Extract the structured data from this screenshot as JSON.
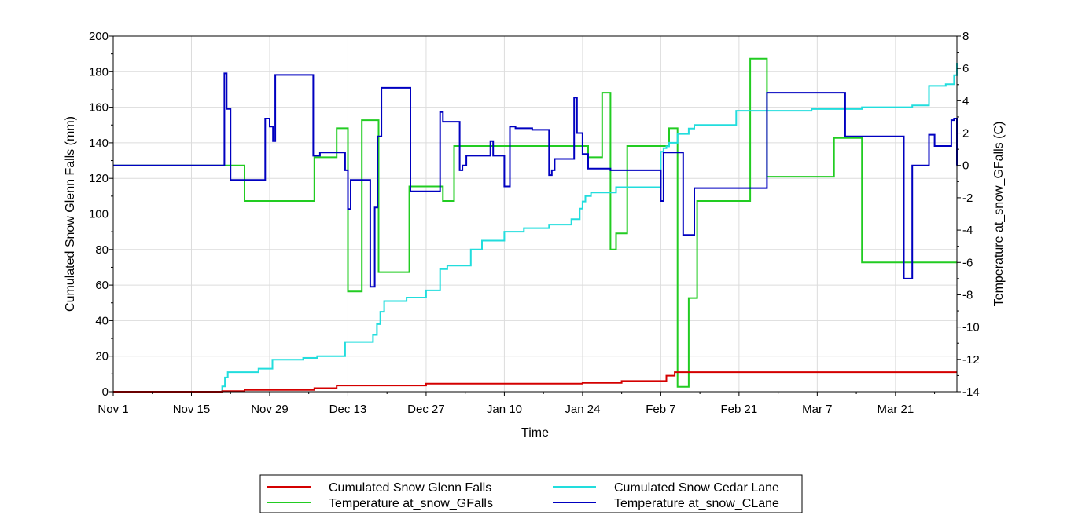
{
  "chart_data": {
    "type": "line",
    "xlabel": "Time",
    "ylabel": "Cumulated Snow Glenn Falls (mm)",
    "y2label": "Temperature at_snow_GFalls (C)",
    "x_ticks": [
      {
        "label": "Nov 1",
        "day": 0
      },
      {
        "label": "Nov 15",
        "day": 14
      },
      {
        "label": "Nov 29",
        "day": 28
      },
      {
        "label": "Dec 13",
        "day": 42
      },
      {
        "label": "Dec 27",
        "day": 56
      },
      {
        "label": "Jan 10",
        "day": 70
      },
      {
        "label": "Jan 24",
        "day": 84
      },
      {
        "label": "Feb 7",
        "day": 98
      },
      {
        "label": "Feb 21",
        "day": 112
      },
      {
        "label": "Mar 7",
        "day": 126
      },
      {
        "label": "Mar 21",
        "day": 140
      }
    ],
    "xlim_days": [
      0,
      151
    ],
    "ylim": [
      0,
      200
    ],
    "y2lim": [
      -14,
      8
    ],
    "y_ticks": [
      0,
      20,
      40,
      60,
      80,
      100,
      120,
      140,
      160,
      180,
      200
    ],
    "y2_ticks": [
      -14,
      -12,
      -10,
      -8,
      -6,
      -4,
      -2,
      0,
      2,
      4,
      6,
      8
    ],
    "grid": true,
    "legend_position": "bottom-center",
    "series": [
      {
        "name": "Cumulated Snow Glenn Falls",
        "axis": "left",
        "color": "#d40000",
        "step": true,
        "x": [
          0,
          19.5,
          23.5,
          36,
          40,
          56,
          84,
          91,
          99,
          100.5,
          151
        ],
        "y": [
          0,
          0.3,
          1,
          2,
          3.5,
          4.5,
          5,
          6,
          9,
          11,
          11
        ]
      },
      {
        "name": "Cumulated Snow Cedar Lane",
        "axis": "left",
        "color": "#22dddd",
        "step": true,
        "x": [
          0,
          19.5,
          20,
          20.5,
          26,
          28.5,
          34,
          36.5,
          41.5,
          46.5,
          47.2,
          47.8,
          48.5,
          52.5,
          56,
          58.5,
          59.8,
          64,
          66,
          70,
          73.5,
          78,
          82,
          83.5,
          84,
          84.5,
          85.5,
          90,
          98,
          98.5,
          99,
          99.5,
          101,
          103,
          104,
          111.5,
          115,
          125,
          134,
          143,
          146,
          149,
          150.5,
          151
        ],
        "y": [
          0,
          3,
          8,
          11,
          13,
          18,
          19,
          20,
          28,
          32,
          38,
          45,
          51,
          53,
          57,
          69,
          71,
          80,
          85,
          90,
          92,
          94,
          97,
          103,
          107,
          110,
          112,
          115,
          135,
          137,
          138,
          140,
          145,
          148,
          150,
          158,
          158,
          159,
          160,
          161,
          172,
          173,
          178,
          185
        ]
      },
      {
        "name": "Temperature at_snow_GFalls",
        "axis": "right",
        "color": "#22cc22",
        "step": true,
        "x": [
          0,
          19.5,
          23.5,
          33,
          36,
          37.5,
          40,
          42,
          44.5,
          47.5,
          53,
          56,
          59,
          61,
          85,
          87.5,
          89,
          90,
          92,
          98,
          99.5,
          101,
          101.5,
          103,
          104.5,
          106,
          114,
          117,
          124,
          129,
          134,
          151
        ],
        "y": [
          0,
          0,
          -2.2,
          -2.2,
          0.5,
          0.5,
          2.3,
          -7.8,
          2.8,
          -6.6,
          -1.3,
          -1.3,
          -2.2,
          1.2,
          0.5,
          4.5,
          -5.2,
          -4.2,
          1.2,
          1.2,
          2.3,
          -13.7,
          -13.7,
          -8.2,
          -2.2,
          -2.2,
          6.6,
          -0.7,
          -0.7,
          1.7,
          -6.0,
          -6.0
        ]
      },
      {
        "name": "Temperature at_snow_CLane",
        "axis": "right",
        "color": "#0000c0",
        "step": true,
        "x": [
          0,
          19.5,
          19.9,
          20.3,
          21,
          26.5,
          27.2,
          28,
          28.6,
          29,
          34.5,
          35.8,
          37,
          41.5,
          42,
          42.5,
          46,
          46.8,
          47.3,
          48,
          52.5,
          53.2,
          58,
          58.5,
          59,
          62,
          62.5,
          63.2,
          66.5,
          67.5,
          68,
          70,
          71,
          72,
          75,
          78,
          78.5,
          79,
          82,
          82.5,
          83,
          84,
          85,
          87,
          89,
          91.5,
          92.5,
          98,
          98.5,
          99,
          102,
          104,
          105,
          117,
          131,
          137,
          141.5,
          142,
          143,
          146,
          147,
          150,
          150.5,
          151
        ],
        "y": [
          0,
          0,
          5.7,
          3.5,
          -0.9,
          -0.9,
          2.9,
          2.4,
          1.5,
          5.6,
          5.6,
          0.6,
          0.8,
          -0.3,
          -2.7,
          -0.9,
          -7.5,
          -2.6,
          1.8,
          4.8,
          4.8,
          -1.6,
          -1.6,
          3.3,
          2.7,
          -0.3,
          0,
          0.6,
          0.6,
          1.5,
          0.6,
          -1.3,
          2.4,
          2.3,
          2.2,
          -0.6,
          -0.3,
          0.4,
          0.4,
          4.2,
          2.0,
          0.7,
          -0.2,
          -0.2,
          -0.3,
          -0.3,
          -0.3,
          -2.2,
          0.8,
          0.8,
          -4.3,
          -1.4,
          -1.4,
          4.5,
          1.8,
          1.8,
          -7.0,
          -7.0,
          0.0,
          1.9,
          1.2,
          2.8,
          2.9,
          0.0
        ]
      }
    ]
  }
}
